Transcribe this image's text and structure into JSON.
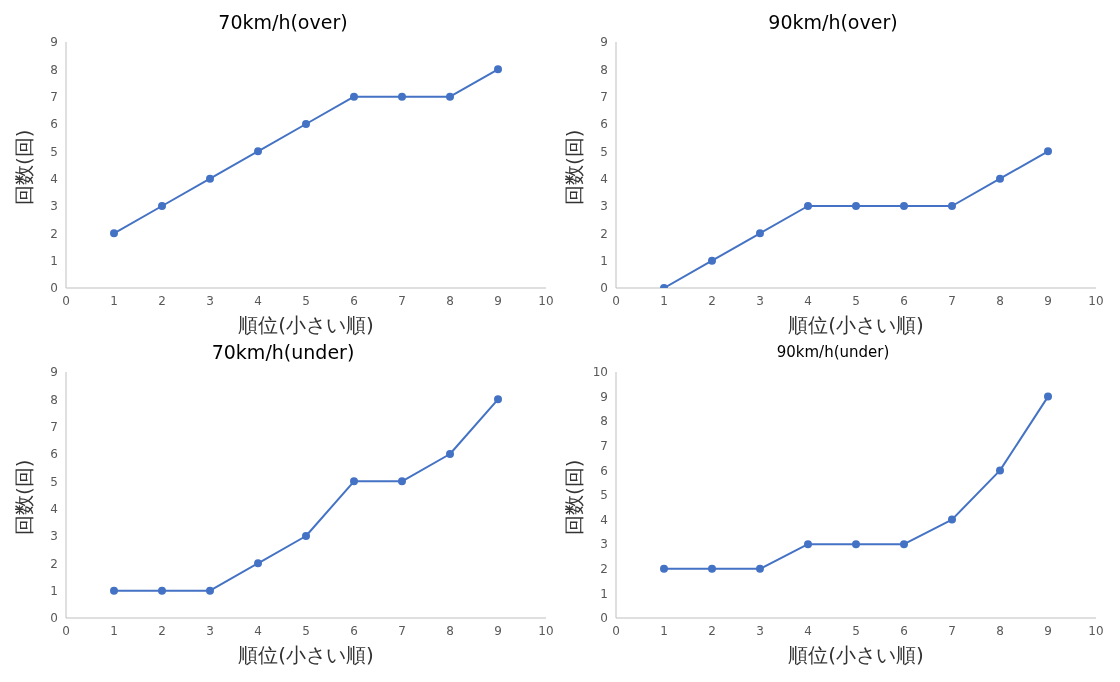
{
  "chart_data": [
    {
      "type": "line",
      "title": "70km/h(over)",
      "xlabel": "順位(小さい順)",
      "ylabel": "回数(回)",
      "x": [
        1,
        2,
        3,
        4,
        5,
        6,
        7,
        8,
        9
      ],
      "series": [
        {
          "color": "#4472c4",
          "values": [
            2,
            3,
            4,
            5,
            6,
            7,
            7,
            7,
            8
          ]
        }
      ],
      "xlim": [
        0,
        10
      ],
      "xticks": [
        0,
        1,
        2,
        3,
        4,
        5,
        6,
        7,
        8,
        9,
        10
      ],
      "ylim": [
        0,
        9
      ],
      "yticks": [
        0,
        1,
        2,
        3,
        4,
        5,
        6,
        7,
        8,
        9
      ],
      "grid": false,
      "legend": false,
      "marker": "circle",
      "line_style": "solid"
    },
    {
      "type": "line",
      "title": "90km/h(over)",
      "xlabel": "順位(小さい順)",
      "ylabel": "回数(回)",
      "x": [
        1,
        2,
        3,
        4,
        5,
        6,
        7,
        8,
        9
      ],
      "series": [
        {
          "color": "#4472c4",
          "values": [
            0,
            1,
            2,
            3,
            3,
            3,
            3,
            4,
            5
          ]
        }
      ],
      "xlim": [
        0,
        10
      ],
      "xticks": [
        0,
        1,
        2,
        3,
        4,
        5,
        6,
        7,
        8,
        9,
        10
      ],
      "ylim": [
        0,
        9
      ],
      "yticks": [
        0,
        1,
        2,
        3,
        4,
        5,
        6,
        7,
        8,
        9
      ],
      "grid": false,
      "legend": false,
      "marker": "circle",
      "line_style": "solid"
    },
    {
      "type": "line",
      "title": "70km/h(under)",
      "xlabel": "順位(小さい順)",
      "ylabel": "回数(回)",
      "x": [
        1,
        2,
        3,
        4,
        5,
        6,
        7,
        8,
        9
      ],
      "series": [
        {
          "color": "#4472c4",
          "values": [
            1,
            1,
            1,
            2,
            3,
            5,
            5,
            6,
            8
          ]
        }
      ],
      "xlim": [
        0,
        10
      ],
      "xticks": [
        0,
        1,
        2,
        3,
        4,
        5,
        6,
        7,
        8,
        9,
        10
      ],
      "ylim": [
        0,
        9
      ],
      "yticks": [
        0,
        1,
        2,
        3,
        4,
        5,
        6,
        7,
        8,
        9
      ],
      "grid": false,
      "legend": false,
      "marker": "circle",
      "line_style": "solid"
    },
    {
      "type": "line",
      "title": "90km/h(under)",
      "xlabel": "順位(小さい順)",
      "ylabel": "回数(回)",
      "x": [
        1,
        2,
        3,
        4,
        5,
        6,
        7,
        8,
        9
      ],
      "series": [
        {
          "color": "#4472c4",
          "values": [
            2,
            2,
            2,
            3,
            3,
            3,
            4,
            6,
            9
          ]
        }
      ],
      "xlim": [
        0,
        10
      ],
      "xticks": [
        0,
        1,
        2,
        3,
        4,
        5,
        6,
        7,
        8,
        9,
        10
      ],
      "ylim": [
        0,
        10
      ],
      "yticks": [
        0,
        1,
        2,
        3,
        4,
        5,
        6,
        7,
        8,
        9,
        10
      ],
      "grid": false,
      "legend": false,
      "marker": "circle",
      "line_style": "solid"
    }
  ]
}
